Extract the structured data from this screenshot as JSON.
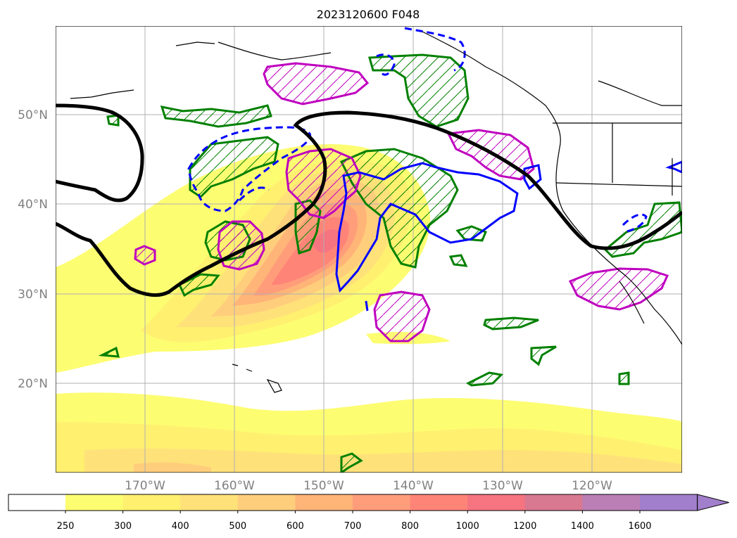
{
  "title": "2023120600 F048",
  "map": {
    "lat_labels": [
      "50°N",
      "40°N",
      "30°N",
      "20°N"
    ],
    "lon_labels": [
      "170°W",
      "160°W",
      "150°W",
      "140°W",
      "130°W",
      "120°W"
    ],
    "lat_range": [
      10,
      60
    ],
    "lon_range": [
      -180,
      -110
    ],
    "gridlines": true
  },
  "colorbar": {
    "levels": [
      "250",
      "300",
      "400",
      "500",
      "600",
      "700",
      "800",
      "1000",
      "1200",
      "1400",
      "1600"
    ],
    "colors": [
      "#ffffff",
      "#fdfd72",
      "#fff070",
      "#ffe17a",
      "#ffce7c",
      "#ffb478",
      "#ff9d7a",
      "#ff8478",
      "#f57480",
      "#d87891",
      "#bb7fb5",
      "#a27fcc"
    ],
    "extend": "max"
  },
  "legend_colors": {
    "contour_black": "#000000",
    "contour_blue": "#0000ff",
    "contour_green": "#008000",
    "contour_magenta": "#bf00bf"
  }
}
